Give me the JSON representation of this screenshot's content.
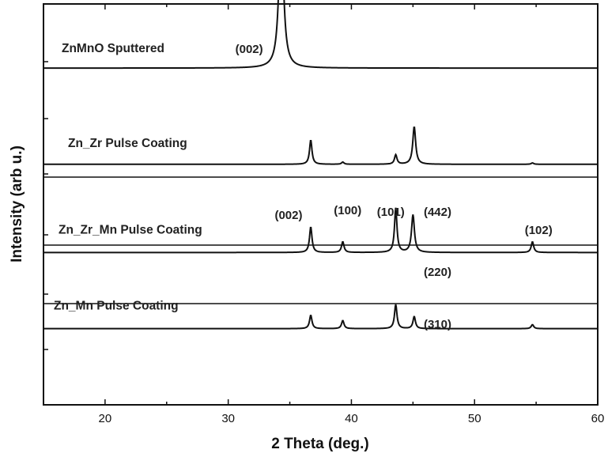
{
  "chart_data": {
    "type": "line",
    "title": "",
    "xlabel": "2 Theta (deg.)",
    "ylabel": "Intensity (arb u.)",
    "xlim": [
      15,
      60
    ],
    "xticks": [
      20,
      30,
      40,
      50,
      60
    ],
    "grid": false,
    "series": [
      {
        "name": "ZnMnO Sputtered",
        "baseline": 0.84,
        "peaks": [
          {
            "x": 34.3,
            "h": 5.5,
            "w": 0.22
          }
        ]
      },
      {
        "name": "Zn_Zr Pulse Coating",
        "baseline": 0.6,
        "peaks": [
          {
            "x": 36.7,
            "h": 0.9,
            "w": 0.12
          },
          {
            "x": 39.3,
            "h": 0.08,
            "w": 0.12
          },
          {
            "x": 43.6,
            "h": 0.35,
            "w": 0.12
          },
          {
            "x": 45.1,
            "h": 1.4,
            "w": 0.14
          },
          {
            "x": 54.7,
            "h": 0.05,
            "w": 0.12
          }
        ]
      },
      {
        "name": "Zn_Zr_Mn Pulse Coating",
        "baseline": 0.38,
        "peaks": [
          {
            "x": 36.7,
            "h": 0.95,
            "w": 0.12
          },
          {
            "x": 39.3,
            "h": 0.4,
            "w": 0.12
          },
          {
            "x": 43.6,
            "h": 1.65,
            "w": 0.12
          },
          {
            "x": 45.0,
            "h": 1.4,
            "w": 0.14
          },
          {
            "x": 54.7,
            "h": 0.4,
            "w": 0.12
          }
        ]
      },
      {
        "name": "Zn_Mn Pulse Coating",
        "baseline": 0.19,
        "peaks": [
          {
            "x": 36.7,
            "h": 0.5,
            "w": 0.12
          },
          {
            "x": 39.3,
            "h": 0.3,
            "w": 0.12
          },
          {
            "x": 43.6,
            "h": 0.9,
            "w": 0.12
          },
          {
            "x": 45.1,
            "h": 0.45,
            "w": 0.12
          },
          {
            "x": 54.7,
            "h": 0.15,
            "w": 0.12
          }
        ]
      }
    ],
    "annotations": [
      {
        "text": "(002)",
        "x": 31.7,
        "series": 0
      },
      {
        "text": "(002)",
        "x": 34.9,
        "series": 1
      },
      {
        "text": "(100)",
        "x": 39.7,
        "series": 1
      },
      {
        "text": "(101)",
        "x": 43.2,
        "series": 1
      },
      {
        "text": "(442)",
        "x": 47.0,
        "series": 1
      },
      {
        "text": "(102)",
        "x": 55.2,
        "series": 1
      },
      {
        "text": "(220)",
        "x": 47.0,
        "series": 2
      },
      {
        "text": "(310)",
        "x": 47.0,
        "series": 3
      }
    ]
  }
}
